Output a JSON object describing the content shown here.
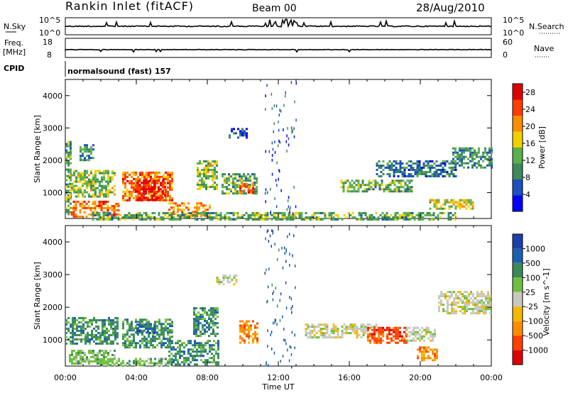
{
  "header": {
    "station": "Rankin Inlet (fitACF)",
    "beam": "Beam 00",
    "date": "28/Aug/2010"
  },
  "strip_nsky": {
    "left_label": "N.Sky",
    "left_ticks": [
      "10^5",
      "10^0"
    ],
    "right_label": "N.Search",
    "right_ticks": [
      "10^5",
      "10^0"
    ]
  },
  "strip_freq": {
    "left_label_1": "Freq.",
    "left_label_2": "[MHz]",
    "left_ticks": [
      "18",
      "8"
    ],
    "right_label": "Nave",
    "right_ticks": [
      "60",
      "0"
    ]
  },
  "cpid": {
    "label": "CPID",
    "value": "normalsound (fast) 157"
  },
  "colors": {
    "power_scale": [
      "#0000ff",
      "#1c4fc0",
      "#3a8a5a",
      "#5ab04a",
      "#f2d000",
      "#ff8c00",
      "#ff3c00",
      "#e00000"
    ],
    "velocity_scale": [
      "#1c3fa8",
      "#1a5fb0",
      "#3a8a5a",
      "#70c040",
      "#c8c8c0",
      "#f5b800",
      "#ff8c00",
      "#ff4000",
      "#e00000"
    ]
  },
  "chart_data": [
    {
      "type": "heatmap",
      "title": "Power",
      "ylabel": "Slant Range [km]",
      "xlabel": "",
      "x_ticks": [
        "00:00",
        "04:00",
        "08:00",
        "12:00",
        "16:00",
        "20:00",
        "00:00"
      ],
      "y_ticks": [
        "1000",
        "2000",
        "3000",
        "4000"
      ],
      "ylim": [
        200,
        4500
      ],
      "xlim_hours": [
        0,
        24
      ],
      "colorbar_label": "Power [dB]",
      "colorbar_ticks": [
        "4",
        "8",
        "12",
        "16",
        "20",
        "24",
        "28"
      ],
      "colorbar_range": [
        0,
        30
      ],
      "regions": [
        {
          "t0": 0.0,
          "t1": 0.35,
          "r0": 300,
          "r1": 2600,
          "level": 12
        },
        {
          "t0": 0.3,
          "t1": 3.0,
          "r0": 250,
          "r1": 750,
          "level": 22
        },
        {
          "t0": 0.2,
          "t1": 2.8,
          "r0": 900,
          "r1": 1700,
          "level": 14
        },
        {
          "t0": 0.8,
          "t1": 1.6,
          "r0": 2000,
          "r1": 2500,
          "level": 10
        },
        {
          "t0": 3.2,
          "t1": 6.0,
          "r0": 750,
          "r1": 1650,
          "level": 22
        },
        {
          "t0": 4.0,
          "t1": 5.6,
          "r0": 800,
          "r1": 1400,
          "level": 28
        },
        {
          "t0": 5.8,
          "t1": 8.2,
          "r0": 250,
          "r1": 700,
          "level": 20
        },
        {
          "t0": 7.4,
          "t1": 8.6,
          "r0": 1100,
          "r1": 2000,
          "level": 14
        },
        {
          "t0": 8.8,
          "t1": 10.8,
          "r0": 1000,
          "r1": 1600,
          "level": 12
        },
        {
          "t0": 9.8,
          "t1": 10.6,
          "r0": 1000,
          "r1": 1300,
          "level": 24
        },
        {
          "t0": 9.2,
          "t1": 10.2,
          "r0": 2700,
          "r1": 3000,
          "level": 6
        },
        {
          "t0": 15.5,
          "t1": 19.5,
          "r0": 1050,
          "r1": 1400,
          "level": 12
        },
        {
          "t0": 17.5,
          "t1": 22.0,
          "r0": 1500,
          "r1": 2000,
          "level": 8
        },
        {
          "t0": 20.5,
          "t1": 23.0,
          "r0": 500,
          "r1": 800,
          "level": 16
        },
        {
          "t0": 21.8,
          "t1": 24.0,
          "r0": 1800,
          "r1": 2400,
          "level": 10
        },
        {
          "t0": 1.5,
          "t1": 22.0,
          "r0": 200,
          "r1": 400,
          "level": 12
        }
      ]
    },
    {
      "type": "heatmap",
      "title": "Velocity",
      "ylabel": "Slant Range [km]",
      "xlabel": "Time UT",
      "x_ticks": [
        "00:00",
        "04:00",
        "08:00",
        "12:00",
        "16:00",
        "20:00",
        "00:00"
      ],
      "y_ticks": [
        "1000",
        "2000",
        "3000",
        "4000"
      ],
      "ylim": [
        200,
        4500
      ],
      "xlim_hours": [
        0,
        24
      ],
      "colorbar_label": "Velocity [m s^-1]",
      "colorbar_ticks": [
        "1000",
        "500",
        "100",
        "25",
        "-25",
        "-100",
        "-500",
        "-1000"
      ],
      "regions": [
        {
          "t0": 0.0,
          "t1": 3.0,
          "r0": 900,
          "r1": 1700,
          "class": 2
        },
        {
          "t0": 0.2,
          "t1": 2.8,
          "r0": 250,
          "r1": 700,
          "class": 3
        },
        {
          "t0": 3.2,
          "t1": 6.0,
          "r0": 750,
          "r1": 1650,
          "class": 2
        },
        {
          "t0": 4.0,
          "t1": 5.0,
          "r0": 1200,
          "r1": 1500,
          "class": 1
        },
        {
          "t0": 5.8,
          "t1": 8.6,
          "r0": 250,
          "r1": 1000,
          "class": 2
        },
        {
          "t0": 7.2,
          "t1": 8.6,
          "r0": 1100,
          "r1": 2000,
          "class": 2
        },
        {
          "t0": 9.8,
          "t1": 10.8,
          "r0": 900,
          "r1": 1600,
          "class": 6
        },
        {
          "t0": 8.5,
          "t1": 9.6,
          "r0": 2700,
          "r1": 3000,
          "class": 4
        },
        {
          "t0": 13.5,
          "t1": 17.5,
          "r0": 1050,
          "r1": 1500,
          "class": 4
        },
        {
          "t0": 17.0,
          "t1": 19.2,
          "r0": 900,
          "r1": 1400,
          "class": 7
        },
        {
          "t0": 19.2,
          "t1": 20.8,
          "r0": 1000,
          "r1": 1400,
          "class": 4
        },
        {
          "t0": 19.8,
          "t1": 21.0,
          "r0": 400,
          "r1": 800,
          "class": 6
        },
        {
          "t0": 21.0,
          "t1": 24.0,
          "r0": 1800,
          "r1": 2500,
          "class": 4
        },
        {
          "t0": 2.0,
          "t1": 6.0,
          "r0": 200,
          "r1": 450,
          "class": 3
        }
      ]
    }
  ]
}
